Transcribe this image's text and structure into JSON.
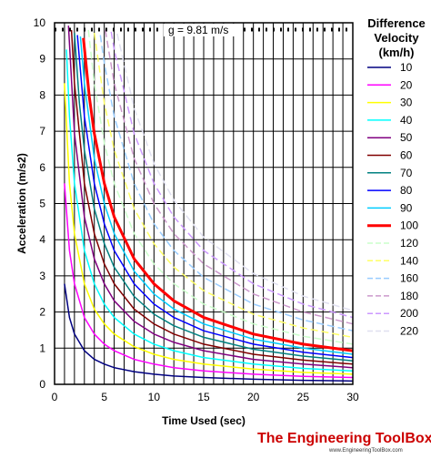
{
  "chart_data": {
    "type": "line",
    "title": "",
    "xlabel": "Time Used (sec)",
    "ylabel": "Acceleration (m/s2)",
    "xlim": [
      0,
      30
    ],
    "ylim": [
      0,
      10
    ],
    "x_ticks": [
      "0",
      "5",
      "10",
      "15",
      "20",
      "25",
      "30"
    ],
    "y_ticks": [
      "0",
      "1",
      "2",
      "3",
      "4",
      "5",
      "6",
      "7",
      "8",
      "9",
      "10"
    ],
    "grid": true,
    "legend_title": [
      "Difference",
      "Velocity",
      "(km/h)"
    ],
    "legend_position": "right",
    "annotation": "g = 9.81 m/s",
    "reference_line_y": 9.81,
    "series": [
      {
        "name": "10",
        "color": "#000080",
        "dash": "solid",
        "width": 1.5,
        "x": [
          1,
          1.5,
          2,
          3,
          4,
          5,
          6,
          8,
          10,
          12,
          15,
          20,
          25,
          30
        ],
        "y": [
          2.78,
          1.85,
          1.39,
          0.93,
          0.69,
          0.56,
          0.46,
          0.35,
          0.28,
          0.23,
          0.19,
          0.14,
          0.11,
          0.09
        ]
      },
      {
        "name": "20",
        "color": "#ff00ff",
        "dash": "solid",
        "width": 1.5,
        "x": [
          1,
          1.5,
          2,
          3,
          4,
          5,
          6,
          8,
          10,
          12,
          15,
          20,
          25,
          30
        ],
        "y": [
          5.56,
          3.7,
          2.78,
          1.85,
          1.39,
          1.11,
          0.93,
          0.69,
          0.56,
          0.46,
          0.37,
          0.28,
          0.22,
          0.19
        ]
      },
      {
        "name": "30",
        "color": "#ffff00",
        "dash": "solid",
        "width": 1.5,
        "x": [
          1,
          1.5,
          2,
          3,
          4,
          5,
          6,
          8,
          10,
          12,
          15,
          20,
          25,
          30
        ],
        "y": [
          8.33,
          5.56,
          4.17,
          2.78,
          2.08,
          1.67,
          1.39,
          1.04,
          0.83,
          0.69,
          0.56,
          0.42,
          0.33,
          0.28
        ]
      },
      {
        "name": "40",
        "color": "#00ffff",
        "dash": "solid",
        "width": 1.5,
        "x": [
          1.2,
          1.5,
          2,
          3,
          4,
          5,
          6,
          8,
          10,
          12,
          15,
          20,
          25,
          30
        ],
        "y": [
          9.26,
          7.41,
          5.56,
          3.7,
          2.78,
          2.22,
          1.85,
          1.39,
          1.11,
          0.93,
          0.74,
          0.56,
          0.44,
          0.37
        ]
      },
      {
        "name": "50",
        "color": "#800080",
        "dash": "solid",
        "width": 1.5,
        "x": [
          1.4,
          2,
          3,
          4,
          5,
          6,
          8,
          10,
          12,
          15,
          20,
          25,
          30
        ],
        "y": [
          9.92,
          6.94,
          4.63,
          3.47,
          2.78,
          2.31,
          1.74,
          1.39,
          1.16,
          0.93,
          0.69,
          0.56,
          0.46
        ]
      },
      {
        "name": "60",
        "color": "#800000",
        "dash": "solid",
        "width": 1.5,
        "x": [
          1.7,
          2,
          3,
          4,
          5,
          6,
          8,
          10,
          12,
          15,
          20,
          25,
          30
        ],
        "y": [
          9.8,
          8.33,
          5.56,
          4.17,
          3.33,
          2.78,
          2.08,
          1.67,
          1.39,
          1.11,
          0.83,
          0.67,
          0.56
        ]
      },
      {
        "name": "70",
        "color": "#008080",
        "dash": "solid",
        "width": 1.5,
        "x": [
          2,
          2.5,
          3,
          4,
          5,
          6,
          8,
          10,
          12,
          15,
          20,
          25,
          30
        ],
        "y": [
          9.72,
          7.78,
          6.48,
          4.86,
          3.89,
          3.24,
          2.43,
          1.94,
          1.62,
          1.3,
          0.97,
          0.78,
          0.65
        ]
      },
      {
        "name": "80",
        "color": "#0000ff",
        "dash": "solid",
        "width": 1.5,
        "x": [
          2.3,
          3,
          4,
          5,
          6,
          8,
          10,
          12,
          15,
          20,
          25,
          30
        ],
        "y": [
          9.66,
          7.41,
          5.56,
          4.44,
          3.7,
          2.78,
          2.22,
          1.85,
          1.48,
          1.11,
          0.89,
          0.74
        ]
      },
      {
        "name": "90",
        "color": "#00ccff",
        "dash": "solid",
        "width": 1.5,
        "x": [
          2.6,
          3,
          4,
          5,
          6,
          8,
          10,
          12,
          15,
          20,
          25,
          30
        ],
        "y": [
          9.62,
          8.33,
          6.25,
          5.0,
          4.17,
          3.13,
          2.5,
          2.08,
          1.67,
          1.25,
          1.0,
          0.83
        ]
      },
      {
        "name": "100",
        "color": "#ff0000",
        "dash": "solid",
        "width": 3,
        "x": [
          2.9,
          3.5,
          4,
          5,
          6,
          8,
          10,
          12,
          15,
          20,
          25,
          30
        ],
        "y": [
          9.58,
          7.94,
          6.94,
          5.56,
          4.63,
          3.47,
          2.78,
          2.31,
          1.85,
          1.39,
          1.11,
          0.93
        ]
      },
      {
        "name": "120",
        "color": "#ccffcc",
        "dash": "dash",
        "width": 1.5,
        "x": [
          3.4,
          4,
          5,
          6,
          8,
          10,
          12,
          15,
          20,
          25,
          30
        ],
        "y": [
          9.8,
          8.33,
          6.67,
          5.56,
          4.17,
          3.33,
          2.78,
          2.22,
          1.67,
          1.33,
          1.11
        ]
      },
      {
        "name": "140",
        "color": "#ffff66",
        "dash": "dash",
        "width": 1.5,
        "x": [
          4,
          5,
          6,
          8,
          10,
          12,
          15,
          20,
          25,
          30
        ],
        "y": [
          9.72,
          7.78,
          6.48,
          4.86,
          3.89,
          3.24,
          2.59,
          1.94,
          1.56,
          1.3
        ]
      },
      {
        "name": "160",
        "color": "#99ccff",
        "dash": "dash",
        "width": 1.5,
        "x": [
          4.6,
          5,
          6,
          8,
          10,
          12,
          15,
          20,
          25,
          30
        ],
        "y": [
          9.66,
          8.89,
          7.41,
          5.56,
          4.44,
          3.7,
          2.96,
          2.22,
          1.78,
          1.48
        ]
      },
      {
        "name": "180",
        "color": "#cc99cc",
        "dash": "dash",
        "width": 1.5,
        "x": [
          5.1,
          6,
          8,
          10,
          12,
          15,
          20,
          25,
          30
        ],
        "y": [
          9.8,
          8.33,
          6.25,
          5.0,
          4.17,
          3.33,
          2.5,
          2.0,
          1.67
        ]
      },
      {
        "name": "200",
        "color": "#cc99ff",
        "dash": "dash",
        "width": 1.5,
        "x": [
          5.7,
          6,
          8,
          10,
          12,
          15,
          20,
          25,
          30
        ],
        "y": [
          9.75,
          9.26,
          6.94,
          5.56,
          4.63,
          3.7,
          2.78,
          2.22,
          1.85
        ]
      },
      {
        "name": "220",
        "color": "#e0e0f0",
        "dash": "dash",
        "width": 1.5,
        "x": [
          6.3,
          8,
          10,
          12,
          15,
          20,
          25,
          30
        ],
        "y": [
          9.7,
          7.64,
          6.11,
          5.09,
          4.07,
          3.06,
          2.44,
          2.04
        ]
      }
    ]
  },
  "brand": {
    "name": "The Engineering ToolBox",
    "url": "www.EngineeringToolBox.com"
  }
}
